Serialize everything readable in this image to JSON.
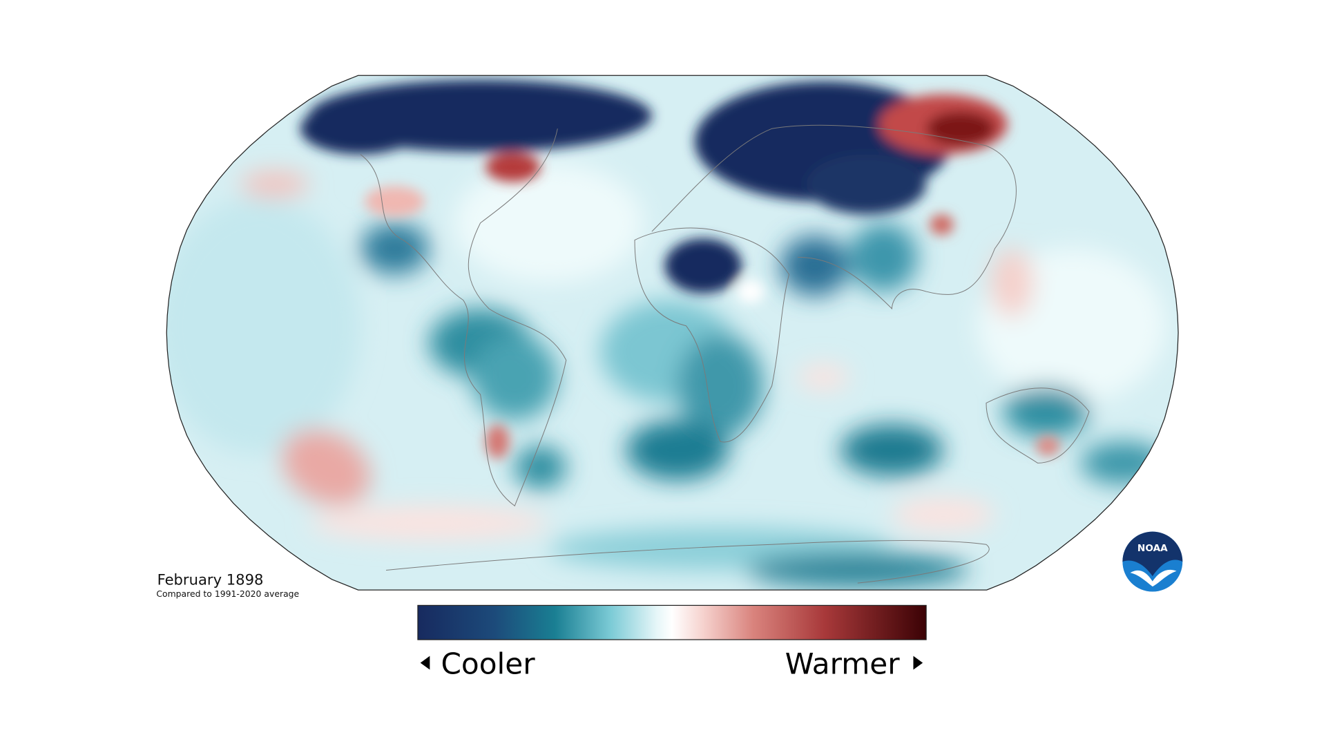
{
  "caption": {
    "title": "February 1898",
    "subtitle": "Compared to 1991-2020 average"
  },
  "legend": {
    "low": "Cooler",
    "high": "Warmer"
  },
  "logo": "NOAA"
}
